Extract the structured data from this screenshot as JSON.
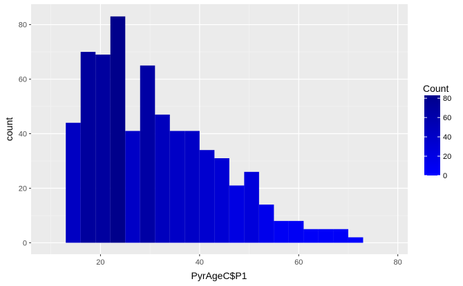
{
  "chart_data": {
    "type": "bar",
    "xlabel": "PyrAgeC$P1",
    "ylabel": "count",
    "xlim": [
      6,
      82
    ],
    "ylim": [
      -4.2,
      87.5
    ],
    "x_ticks": [
      20,
      40,
      60,
      80
    ],
    "x_minor_ticks": [
      10,
      30,
      50,
      70
    ],
    "y_ticks": [
      0,
      20,
      40,
      60,
      80
    ],
    "y_minor_ticks": [
      10,
      30,
      50,
      70
    ],
    "grid": true,
    "panel_color": "#ebebeb",
    "bins": [
      {
        "x0": 13,
        "x1": 16,
        "count": 44
      },
      {
        "x0": 16,
        "x1": 19,
        "count": 70
      },
      {
        "x0": 19,
        "x1": 22,
        "count": 69
      },
      {
        "x0": 22,
        "x1": 25,
        "count": 83
      },
      {
        "x0": 25,
        "x1": 28,
        "count": 41
      },
      {
        "x0": 28,
        "x1": 31,
        "count": 65
      },
      {
        "x0": 31,
        "x1": 34,
        "count": 47
      },
      {
        "x0": 34,
        "x1": 37,
        "count": 41
      },
      {
        "x0": 37,
        "x1": 40,
        "count": 41
      },
      {
        "x0": 40,
        "x1": 43,
        "count": 34
      },
      {
        "x0": 43,
        "x1": 46,
        "count": 31
      },
      {
        "x0": 46,
        "x1": 49,
        "count": 21
      },
      {
        "x0": 49,
        "x1": 52,
        "count": 26
      },
      {
        "x0": 52,
        "x1": 55,
        "count": 14
      },
      {
        "x0": 55,
        "x1": 58,
        "count": 8
      },
      {
        "x0": 58,
        "x1": 61,
        "count": 8
      },
      {
        "x0": 61,
        "x1": 64,
        "count": 5
      },
      {
        "x0": 64,
        "x1": 67,
        "count": 5
      },
      {
        "x0": 67,
        "x1": 70,
        "count": 5
      },
      {
        "x0": 70,
        "x1": 73,
        "count": 2
      }
    ],
    "legend": {
      "title": "Count",
      "position": "right",
      "ticks": [
        0,
        20,
        40,
        60,
        80
      ],
      "range": [
        0,
        83
      ],
      "low_color": "#0000ff",
      "high_color": "#00008b"
    }
  }
}
